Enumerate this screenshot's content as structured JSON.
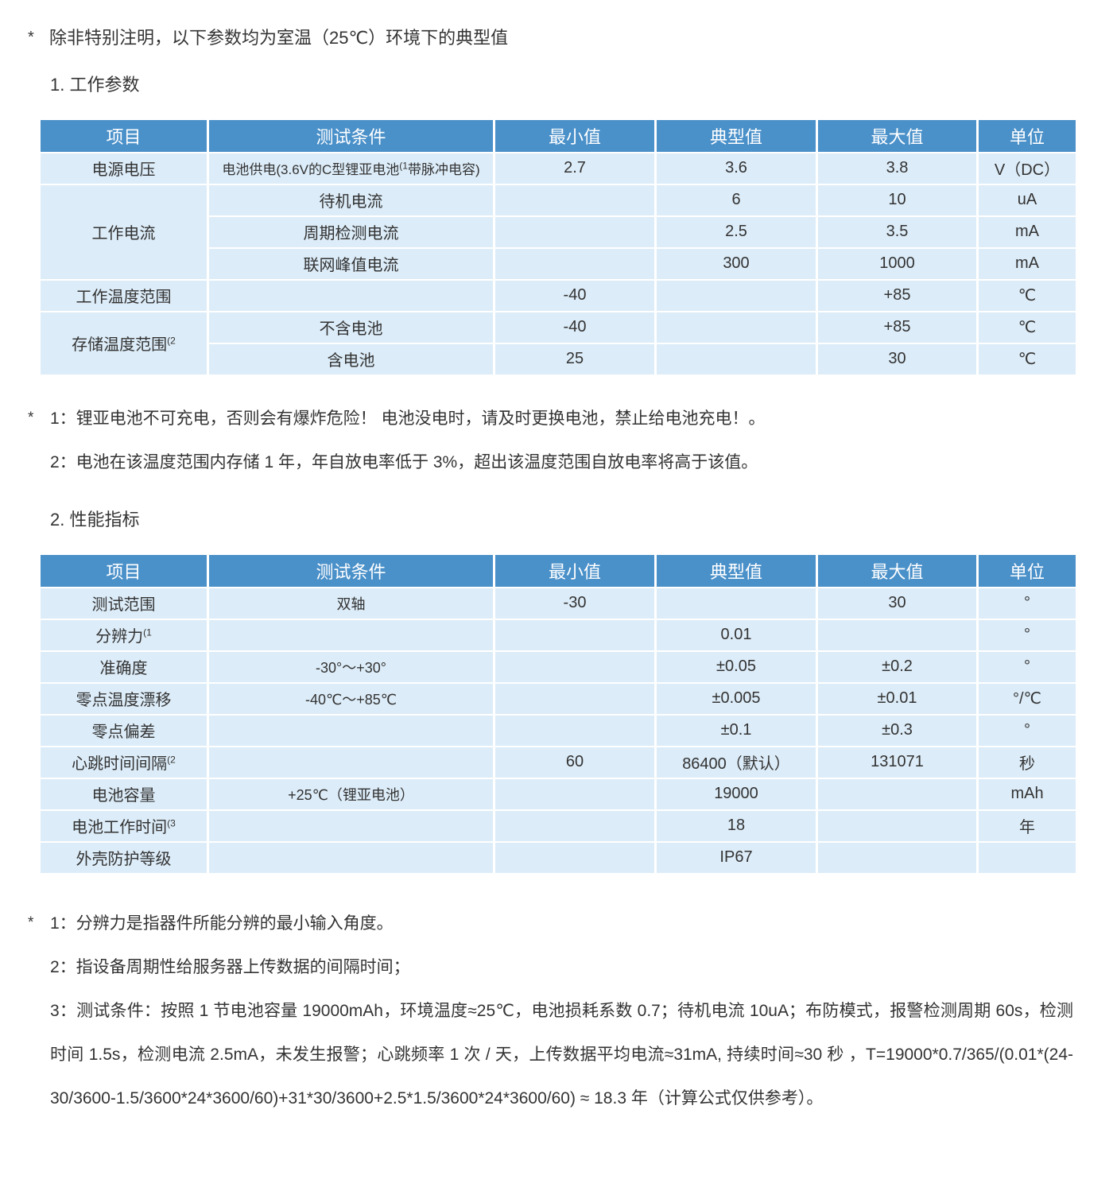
{
  "colors": {
    "header_bg": "#4a90c9",
    "cell_bg": "#dcecf8"
  },
  "top_note": {
    "star": "*",
    "text": "除非特别注明，以下参数均为室温（25℃）环境下的典型值"
  },
  "section1": {
    "title": "1. 工作参数",
    "table": {
      "headers": [
        "项目",
        "测试条件",
        "最小值",
        "典型值",
        "最大值",
        "单位"
      ],
      "rows": [
        [
          {
            "t": "电源电压"
          },
          {
            "t": "电池供电(3.6V的C型锂亚电池",
            "sup": "(1",
            "post": "带脉冲电容)",
            "size": "xs"
          },
          {
            "t": "2.7"
          },
          {
            "t": "3.6"
          },
          {
            "t": "3.8"
          },
          {
            "t": "V（DC）"
          }
        ],
        [
          {
            "t": "工作电流",
            "rowspan": 3
          },
          {
            "t": "待机电流"
          },
          {
            "t": ""
          },
          {
            "t": "6"
          },
          {
            "t": "10"
          },
          {
            "t": "uA"
          }
        ],
        [
          {
            "t": "周期检测电流"
          },
          {
            "t": ""
          },
          {
            "t": "2.5"
          },
          {
            "t": "3.5"
          },
          {
            "t": "mA"
          }
        ],
        [
          {
            "t": "联网峰值电流"
          },
          {
            "t": ""
          },
          {
            "t": "300"
          },
          {
            "t": "1000"
          },
          {
            "t": "mA"
          }
        ],
        [
          {
            "t": "工作温度范围"
          },
          {
            "t": ""
          },
          {
            "t": "-40"
          },
          {
            "t": ""
          },
          {
            "t": "+85"
          },
          {
            "t": "℃"
          }
        ],
        [
          {
            "t": "存储温度范围",
            "sup": "(2",
            "rowspan": 2
          },
          {
            "t": "不含电池"
          },
          {
            "t": "-40"
          },
          {
            "t": ""
          },
          {
            "t": "+85"
          },
          {
            "t": "℃"
          }
        ],
        [
          {
            "t": "含电池"
          },
          {
            "t": "25"
          },
          {
            "t": ""
          },
          {
            "t": "30"
          },
          {
            "t": "℃"
          }
        ]
      ]
    },
    "notes": [
      {
        "star": "*",
        "text": "1：锂亚电池不可充电，否则会有爆炸危险！ 电池没电时，请及时更换电池，禁止给电池充电！。"
      },
      {
        "star": "",
        "text": "2：电池在该温度范围内存储 1 年，年自放电率低于 3%，超出该温度范围自放电率将高于该值。"
      }
    ]
  },
  "section2": {
    "title": "2. 性能指标",
    "table": {
      "headers": [
        "项目",
        "测试条件",
        "最小值",
        "典型值",
        "最大值",
        "单位"
      ],
      "rows": [
        [
          {
            "t": "测试范围"
          },
          {
            "t": "双轴",
            "size": "sm"
          },
          {
            "t": "-30"
          },
          {
            "t": ""
          },
          {
            "t": "30"
          },
          {
            "t": "°"
          }
        ],
        [
          {
            "t": "分辨力",
            "sup": "(1"
          },
          {
            "t": ""
          },
          {
            "t": ""
          },
          {
            "t": "0.01"
          },
          {
            "t": ""
          },
          {
            "t": "°"
          }
        ],
        [
          {
            "t": "准确度"
          },
          {
            "t": "-30°～+30°",
            "size": "sm"
          },
          {
            "t": ""
          },
          {
            "t": "±0.05"
          },
          {
            "t": "±0.2"
          },
          {
            "t": "°"
          }
        ],
        [
          {
            "t": "零点温度漂移"
          },
          {
            "t": "-40℃～+85℃",
            "size": "sm"
          },
          {
            "t": ""
          },
          {
            "t": "±0.005"
          },
          {
            "t": "±0.01"
          },
          {
            "t": "°/℃"
          }
        ],
        [
          {
            "t": "零点偏差"
          },
          {
            "t": ""
          },
          {
            "t": ""
          },
          {
            "t": "±0.1"
          },
          {
            "t": "±0.3"
          },
          {
            "t": "°"
          }
        ],
        [
          {
            "t": "心跳时间间隔",
            "sup": "(2"
          },
          {
            "t": ""
          },
          {
            "t": "60"
          },
          {
            "t": "86400（默认）"
          },
          {
            "t": "131071"
          },
          {
            "t": "秒"
          }
        ],
        [
          {
            "t": "电池容量"
          },
          {
            "t": "+25℃（锂亚电池）",
            "size": "sm"
          },
          {
            "t": ""
          },
          {
            "t": "19000"
          },
          {
            "t": ""
          },
          {
            "t": "mAh"
          }
        ],
        [
          {
            "t": "电池工作时间",
            "sup": "(3"
          },
          {
            "t": ""
          },
          {
            "t": ""
          },
          {
            "t": "18"
          },
          {
            "t": ""
          },
          {
            "t": "年"
          }
        ],
        [
          {
            "t": "外壳防护等级"
          },
          {
            "t": ""
          },
          {
            "t": ""
          },
          {
            "t": "IP67"
          },
          {
            "t": ""
          },
          {
            "t": ""
          }
        ]
      ]
    },
    "notes": [
      {
        "star": "*",
        "text": "1：分辨力是指器件所能分辨的最小输入角度。"
      },
      {
        "star": "",
        "text": "2：指设备周期性给服务器上传数据的间隔时间；"
      },
      {
        "star": "",
        "text": "3：测试条件：按照 1 节电池容量 19000mAh，环境温度≈25℃，电池损耗系数 0.7；待机电流 10uA；布防模式，报警检测周期 60s，检测时间 1.5s，检测电流 2.5mA，未发生报警；心跳频率 1 次 / 天，上传数据平均电流≈31mA, 持续时间≈30 秒 ，T=19000*0.7/365/(0.01*(24-30/3600-1.5/3600*24*3600/60)+31*30/3600+2.5*1.5/3600*24*3600/60) ≈ 18.3 年（计算公式仅供参考）。"
      }
    ]
  }
}
